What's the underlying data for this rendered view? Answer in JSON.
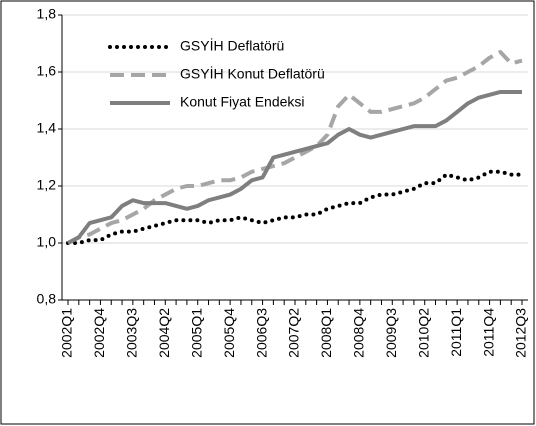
{
  "chart_data": {
    "type": "line",
    "categories": [
      "2002Q1",
      null,
      null,
      "2002Q4",
      null,
      null,
      "2003Q3",
      null,
      null,
      "2004Q2",
      null,
      null,
      "2005Q1",
      null,
      null,
      "2005Q4",
      null,
      null,
      "2006Q3",
      null,
      null,
      "2007Q2",
      null,
      null,
      "2008Q1",
      null,
      null,
      "2008Q4",
      null,
      null,
      "2009Q3",
      null,
      null,
      "2010Q2",
      null,
      null,
      "2011Q1",
      null,
      null,
      "2011Q4",
      null,
      null,
      "2012Q3"
    ],
    "series": [
      {
        "name": "GSYİH Deflatörü",
        "color": "#000000",
        "line_style": "dotted",
        "values": [
          1.0,
          1.0,
          1.01,
          1.01,
          1.03,
          1.04,
          1.04,
          1.05,
          1.06,
          1.07,
          1.08,
          1.08,
          1.08,
          1.07,
          1.08,
          1.08,
          1.09,
          1.08,
          1.07,
          1.08,
          1.09,
          1.09,
          1.1,
          1.1,
          1.12,
          1.13,
          1.14,
          1.14,
          1.16,
          1.17,
          1.17,
          1.18,
          1.19,
          1.21,
          1.21,
          1.24,
          1.23,
          1.22,
          1.23,
          1.25,
          1.25,
          1.24,
          1.24
        ]
      },
      {
        "name": "GSYİH Konut Deflatörü",
        "color": "#a6a6a6",
        "line_style": "dashed",
        "values": [
          1.0,
          1.02,
          1.03,
          1.05,
          1.07,
          1.08,
          1.1,
          1.12,
          1.15,
          1.17,
          1.19,
          1.2,
          1.2,
          1.21,
          1.22,
          1.22,
          1.23,
          1.25,
          1.26,
          1.27,
          1.28,
          1.3,
          1.32,
          1.34,
          1.38,
          1.48,
          1.52,
          1.49,
          1.46,
          1.46,
          1.47,
          1.48,
          1.49,
          1.51,
          1.54,
          1.57,
          1.58,
          1.6,
          1.62,
          1.65,
          1.67,
          1.63,
          1.64
        ]
      },
      {
        "name": "Konut Fiyat Endeksi",
        "color": "#7f7f7f",
        "line_style": "solid",
        "values": [
          1.0,
          1.02,
          1.07,
          1.08,
          1.09,
          1.13,
          1.15,
          1.14,
          1.14,
          1.14,
          1.13,
          1.12,
          1.13,
          1.15,
          1.16,
          1.17,
          1.19,
          1.22,
          1.23,
          1.3,
          1.31,
          1.32,
          1.33,
          1.34,
          1.35,
          1.38,
          1.4,
          1.38,
          1.37,
          1.38,
          1.39,
          1.4,
          1.41,
          1.41,
          1.41,
          1.43,
          1.46,
          1.49,
          1.51,
          1.52,
          1.53,
          1.53,
          1.53
        ]
      }
    ],
    "ylim": [
      0.8,
      1.8
    ],
    "yticks": [
      {
        "value": 0.8,
        "label": "0,8"
      },
      {
        "value": 1.0,
        "label": "1,0"
      },
      {
        "value": 1.2,
        "label": "1,2"
      },
      {
        "value": 1.4,
        "label": "1,4"
      },
      {
        "value": 1.6,
        "label": "1,6"
      },
      {
        "value": 1.8,
        "label": "1,8"
      }
    ],
    "grid": true,
    "legend": "top-left"
  }
}
